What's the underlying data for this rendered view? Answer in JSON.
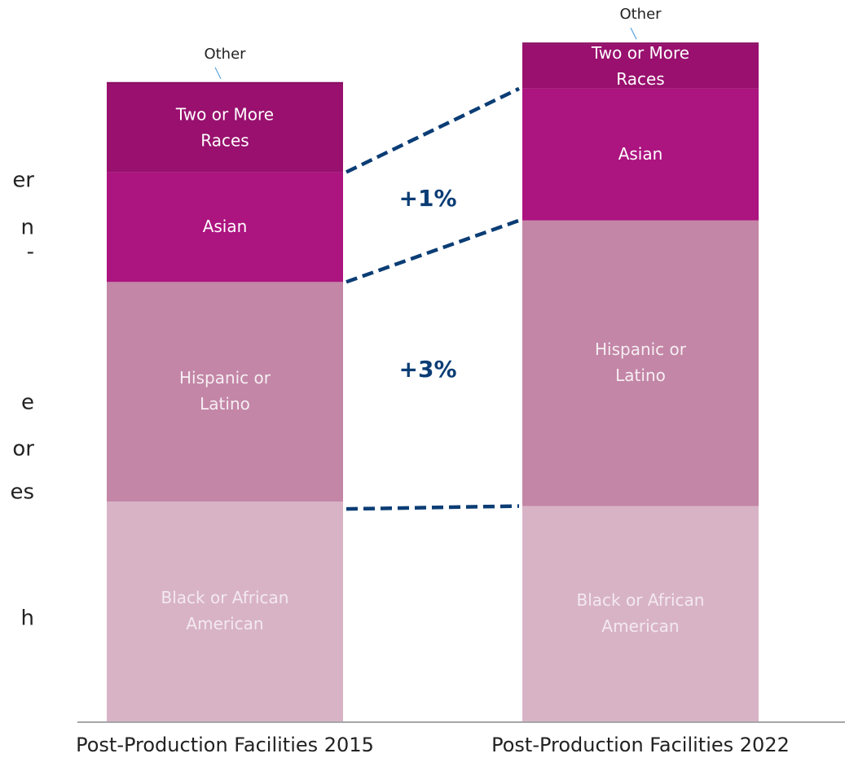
{
  "chart_data": {
    "type": "stacked_bar",
    "categories": [
      "Post-Production Facilities 2015",
      "Post-Production Facilities 2022"
    ],
    "series": [
      {
        "name": "Black or African American",
        "color": "#d8b3c6",
        "values": [
          10,
          9.8
        ]
      },
      {
        "name": "Hispanic or Latino",
        "color": "#c386a6",
        "values": [
          10,
          13
        ]
      },
      {
        "name": "Asian",
        "color": "#ac1480",
        "values": [
          5,
          6
        ]
      },
      {
        "name": "Two or More Races",
        "color": "#99106e",
        "values": [
          4,
          2
        ]
      },
      {
        "name": "Other",
        "color": "#8b0d62",
        "values": [
          0.1,
          0.1
        ]
      }
    ],
    "ylim": [
      0,
      31.5
    ],
    "annotations": [
      "+1%",
      "+3%"
    ],
    "side_text_fragments": [
      "er",
      "n",
      "-",
      "e",
      "or",
      "es",
      "h"
    ]
  }
}
